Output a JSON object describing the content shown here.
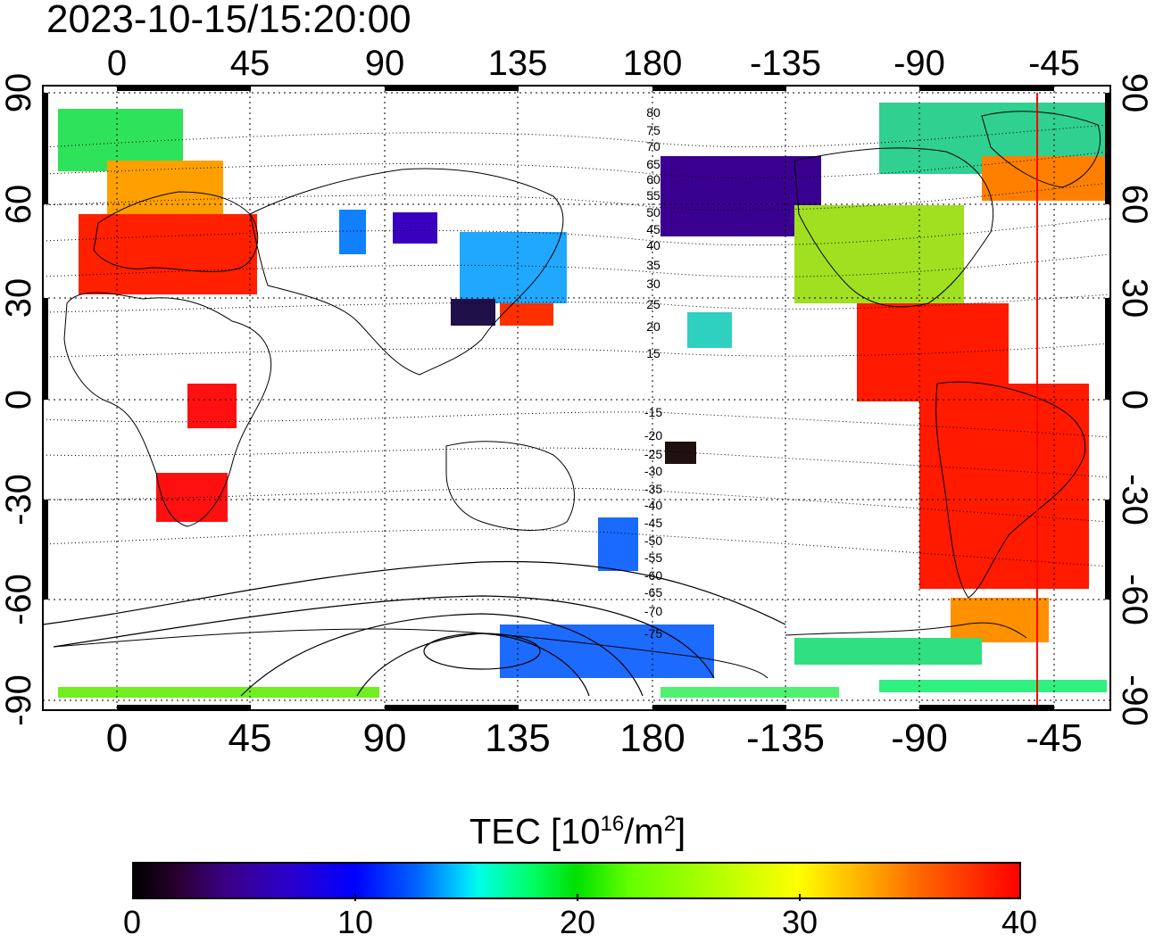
{
  "title": "2023-10-15/15:20:00",
  "top_axis_labels": [
    "0",
    "45",
    "90",
    "135",
    "180",
    "-135",
    "-90",
    "-45"
  ],
  "bottom_axis_labels": [
    "0",
    "45",
    "90",
    "135",
    "180",
    "-135",
    "-90",
    "-45"
  ],
  "left_axis_labels": [
    "90",
    "60",
    "30",
    "0",
    "-30",
    "-60",
    "-90"
  ],
  "right_axis_labels": [
    "90",
    "60",
    "30",
    "0",
    "-30",
    "-60",
    "-90"
  ],
  "contour_labels": [
    "80",
    "75",
    "70",
    "65",
    "60",
    "55",
    "50",
    "45",
    "40",
    "35",
    "30",
    "25",
    "20",
    "15",
    "-15",
    "-20",
    "-25",
    "-30",
    "-35",
    "-40",
    "-45",
    "-50",
    "-55",
    "-60",
    "-65",
    "-70",
    "-75"
  ],
  "colorbar": {
    "title_main": "TEC  [10",
    "title_sup1": "16",
    "title_mid": "/m",
    "title_sup2": "2",
    "title_end": "]",
    "tick_labels": [
      "0",
      "10",
      "20",
      "30",
      "40"
    ],
    "min": 0,
    "max": 40
  },
  "colors": {
    "low": "#000000",
    "mid_low": "#0000ff",
    "mid": "#00e000",
    "mid_high": "#ffff00",
    "high": "#ff0000",
    "terminator_line": "#ff0000"
  }
}
